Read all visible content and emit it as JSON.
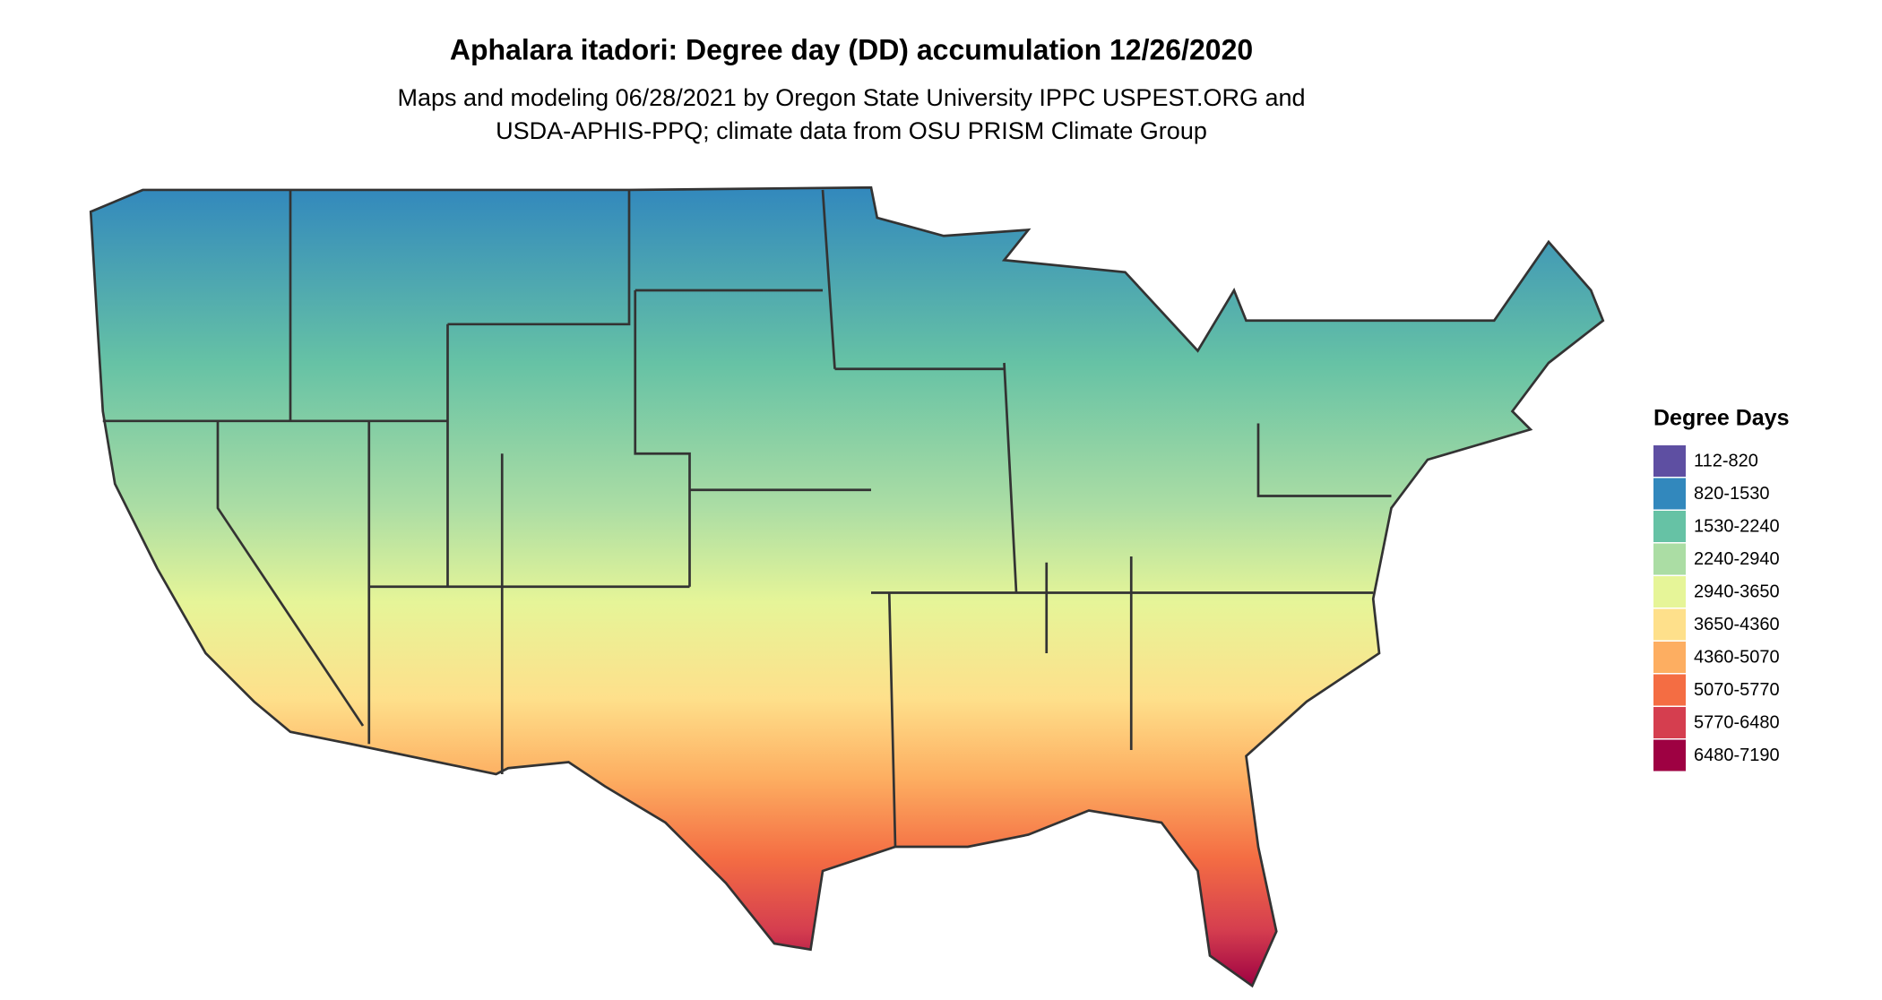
{
  "title": "Aphalara itadori: Degree day (DD) accumulation 12/26/2020",
  "subtitle": [
    "Maps and modeling 06/28/2021 by Oregon State University IPPC USPEST.ORG and",
    "USDA-APHIS-PPQ; climate data from OSU PRISM Climate Group"
  ],
  "legend": {
    "title": "Degree Days",
    "items": [
      {
        "label": "112-820",
        "color": "#5e4fa2"
      },
      {
        "label": "820-1530",
        "color": "#3288bd"
      },
      {
        "label": "1530-2240",
        "color": "#66c2a5"
      },
      {
        "label": "2240-2940",
        "color": "#abdda4"
      },
      {
        "label": "2940-3650",
        "color": "#e6f598"
      },
      {
        "label": "3650-4360",
        "color": "#fee08b"
      },
      {
        "label": "4360-5070",
        "color": "#fdae61"
      },
      {
        "label": "5070-5770",
        "color": "#f46d43"
      },
      {
        "label": "5770-6480",
        "color": "#d53e4f"
      },
      {
        "label": "6480-7190",
        "color": "#9e0142"
      }
    ]
  }
}
